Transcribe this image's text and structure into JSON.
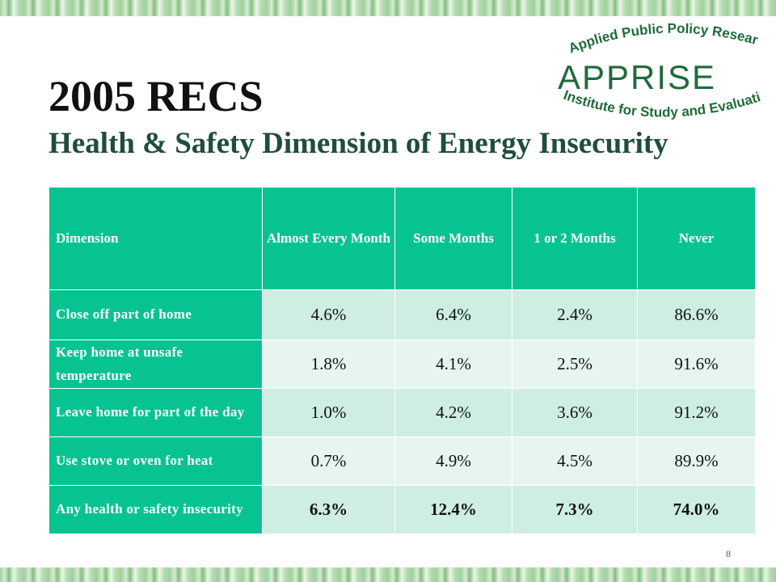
{
  "title": "2005 RECS",
  "subtitle": "Health & Safety Dimension of Energy Insecurity",
  "logo": {
    "top_text": "Applied Public Policy Research",
    "name": "APPRISE",
    "bottom_text": "Institute for Study and Evaluation"
  },
  "table": {
    "headers": [
      "Dimension",
      "Almost Every Month",
      "Some Months",
      "1 or 2 Months",
      "Never"
    ],
    "rows": [
      {
        "label": "Close off part of home",
        "values": [
          "4.6%",
          "6.4%",
          "2.4%",
          "86.6%"
        ]
      },
      {
        "label": "Keep home at unsafe temperature",
        "values": [
          "1.8%",
          "4.1%",
          "2.5%",
          "91.6%"
        ]
      },
      {
        "label": "Leave home for part of the day",
        "values": [
          "1.0%",
          "4.2%",
          "3.6%",
          "91.2%"
        ]
      },
      {
        "label": "Use stove or oven for heat",
        "values": [
          "0.7%",
          "4.9%",
          "4.5%",
          "89.9%"
        ]
      },
      {
        "label": "Any health or safety insecurity",
        "values": [
          "6.3%",
          "12.4%",
          "7.3%",
          "74.0%"
        ]
      }
    ]
  },
  "page_number": "8",
  "colors": {
    "header_green": "#07c392",
    "row_light": "#cdeee1",
    "row_lighter": "#e6f6ef",
    "logo_green": "#1f6b3a"
  }
}
